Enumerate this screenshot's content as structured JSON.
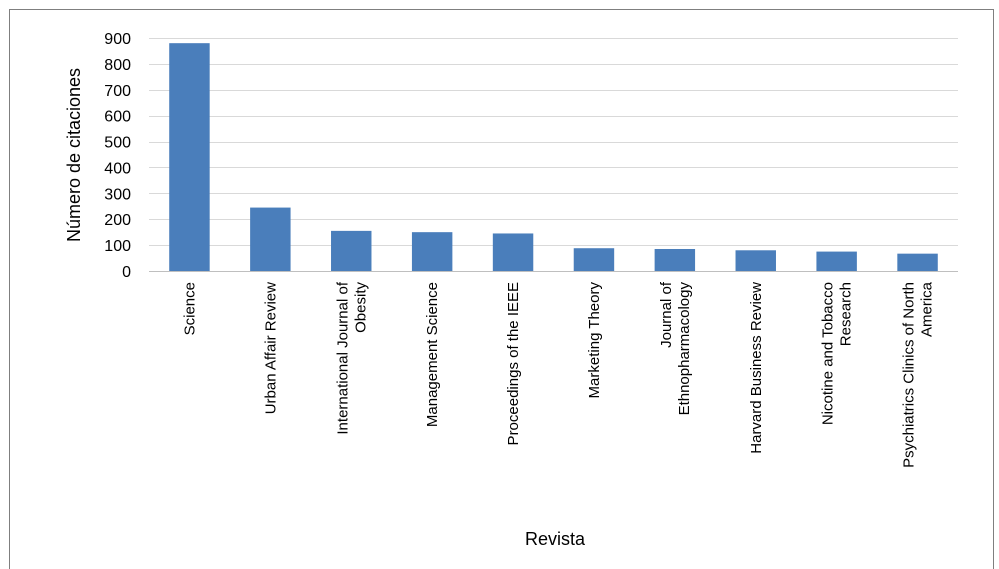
{
  "chart_data": {
    "type": "bar",
    "title": "",
    "xlabel": "Revista",
    "ylabel": "Número de citaciones",
    "ylim": [
      0,
      900
    ],
    "yticks": [
      0,
      100,
      200,
      300,
      400,
      500,
      600,
      700,
      800,
      900
    ],
    "grid": true,
    "legend": "none",
    "bar_color": "#4a7ebb",
    "categories": [
      [
        "Science"
      ],
      [
        "Urban Affair Review"
      ],
      [
        "International Journal of",
        "Obesity"
      ],
      [
        "Management Science"
      ],
      [
        "Proceedings of the IEEE"
      ],
      [
        "Marketing Theory"
      ],
      [
        "Journal of",
        "Ethnopharmacology"
      ],
      [
        "Harvard Business Review"
      ],
      [
        "Nicotine and Tobacco",
        "Research"
      ],
      [
        "Psychiatrics Clinics of North",
        "America"
      ]
    ],
    "values": [
      880,
      245,
      155,
      150,
      145,
      88,
      85,
      80,
      75,
      67
    ]
  }
}
